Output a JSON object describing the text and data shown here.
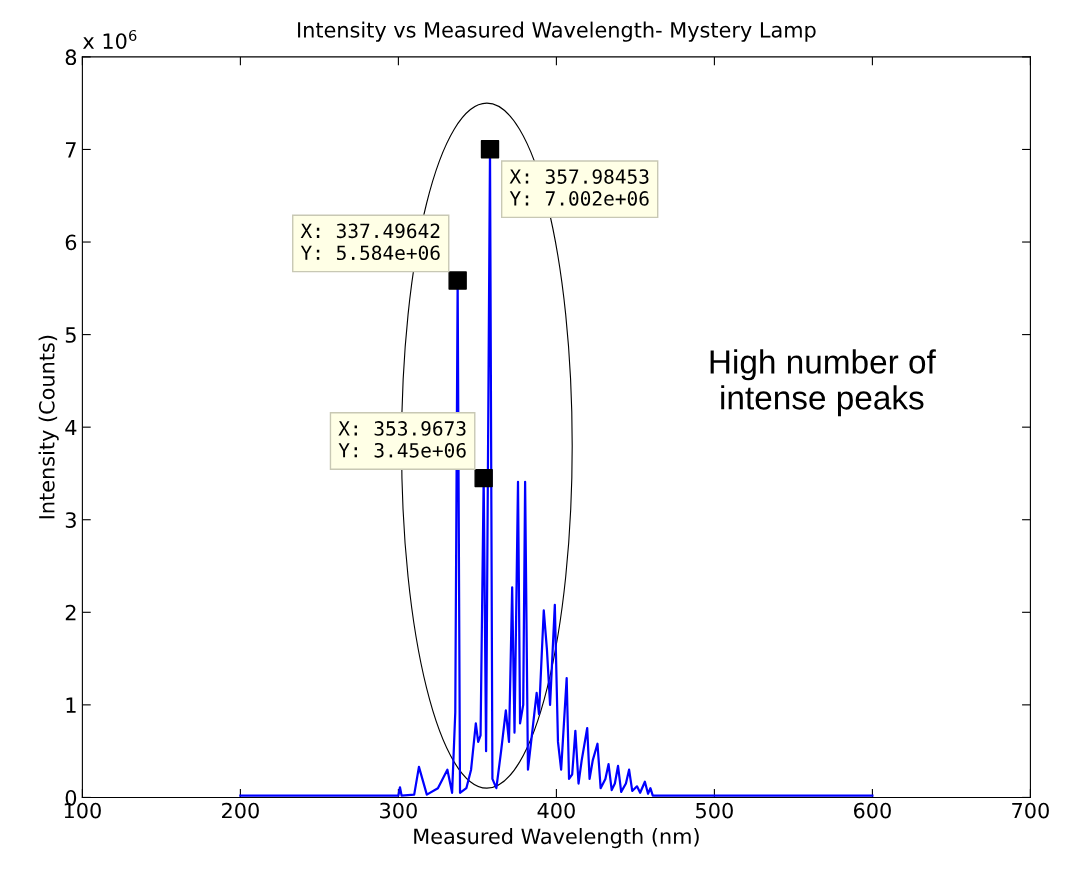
{
  "chart_data": {
    "type": "line",
    "title": "Intensity vs Measured Wavelength- Mystery Lamp",
    "xlabel": "Measured Wavelength (nm)",
    "ylabel": "Intensity (Counts)",
    "x": [
      200,
      300,
      301,
      302,
      310,
      313,
      318,
      325,
      328,
      331,
      334,
      336,
      337.5,
      339,
      343,
      346,
      349,
      350.5,
      352,
      353.97,
      355.5,
      357.98,
      359.5,
      362,
      365,
      368,
      370,
      372,
      373.5,
      375.7,
      377,
      379,
      380.2,
      382,
      384,
      387.5,
      389,
      392,
      394,
      396,
      399,
      401,
      403,
      406.5,
      408,
      410,
      412,
      414,
      416,
      419.5,
      421,
      423,
      426,
      428,
      431,
      433,
      435,
      437,
      439,
      441,
      444,
      446,
      448,
      451,
      453,
      456,
      458,
      459.5,
      461,
      600
    ],
    "series": [
      {
        "color": "#0000ff",
        "values": [
          0.02,
          0.02,
          0.11,
          0.02,
          0.03,
          0.33,
          0.03,
          0.1,
          0.2,
          0.3,
          0.05,
          0.92,
          5.584,
          0.05,
          0.1,
          0.3,
          0.8,
          0.6,
          0.67,
          3.45,
          0.5,
          7.002,
          0.2,
          0.1,
          0.5,
          0.94,
          0.6,
          2.27,
          0.7,
          3.41,
          0.8,
          1.0,
          3.41,
          0.3,
          0.6,
          1.13,
          0.9,
          2.02,
          1.6,
          1.0,
          2.08,
          0.6,
          0.3,
          1.29,
          0.2,
          0.25,
          0.72,
          0.15,
          0.4,
          0.75,
          0.2,
          0.4,
          0.58,
          0.1,
          0.2,
          0.36,
          0.08,
          0.15,
          0.34,
          0.06,
          0.15,
          0.3,
          0.07,
          0.12,
          0.05,
          0.17,
          0.04,
          0.1,
          0.02,
          0.02
        ]
      }
    ],
    "xlim": [
      100,
      700
    ],
    "xticks": [
      100,
      200,
      300,
      400,
      500,
      600,
      700
    ],
    "ylim": [
      0,
      8
    ],
    "yticks": [
      0,
      1,
      2,
      3,
      4,
      5,
      6,
      7,
      8
    ],
    "grid": false,
    "annotations": [
      {
        "text": "X: 337.49642\nY: 5.584e+06",
        "x": 337.5,
        "y": 5.584
      },
      {
        "text": "X: 357.98453\nY: 7.002e+06",
        "x": 357.98,
        "y": 7.002
      },
      {
        "text": "X: 353.9673\nY: 3.45e+06",
        "x": 353.97,
        "y": 3.45
      },
      "x 10$^{6}$",
      "High number of\nintense peaks"
    ]
  }
}
